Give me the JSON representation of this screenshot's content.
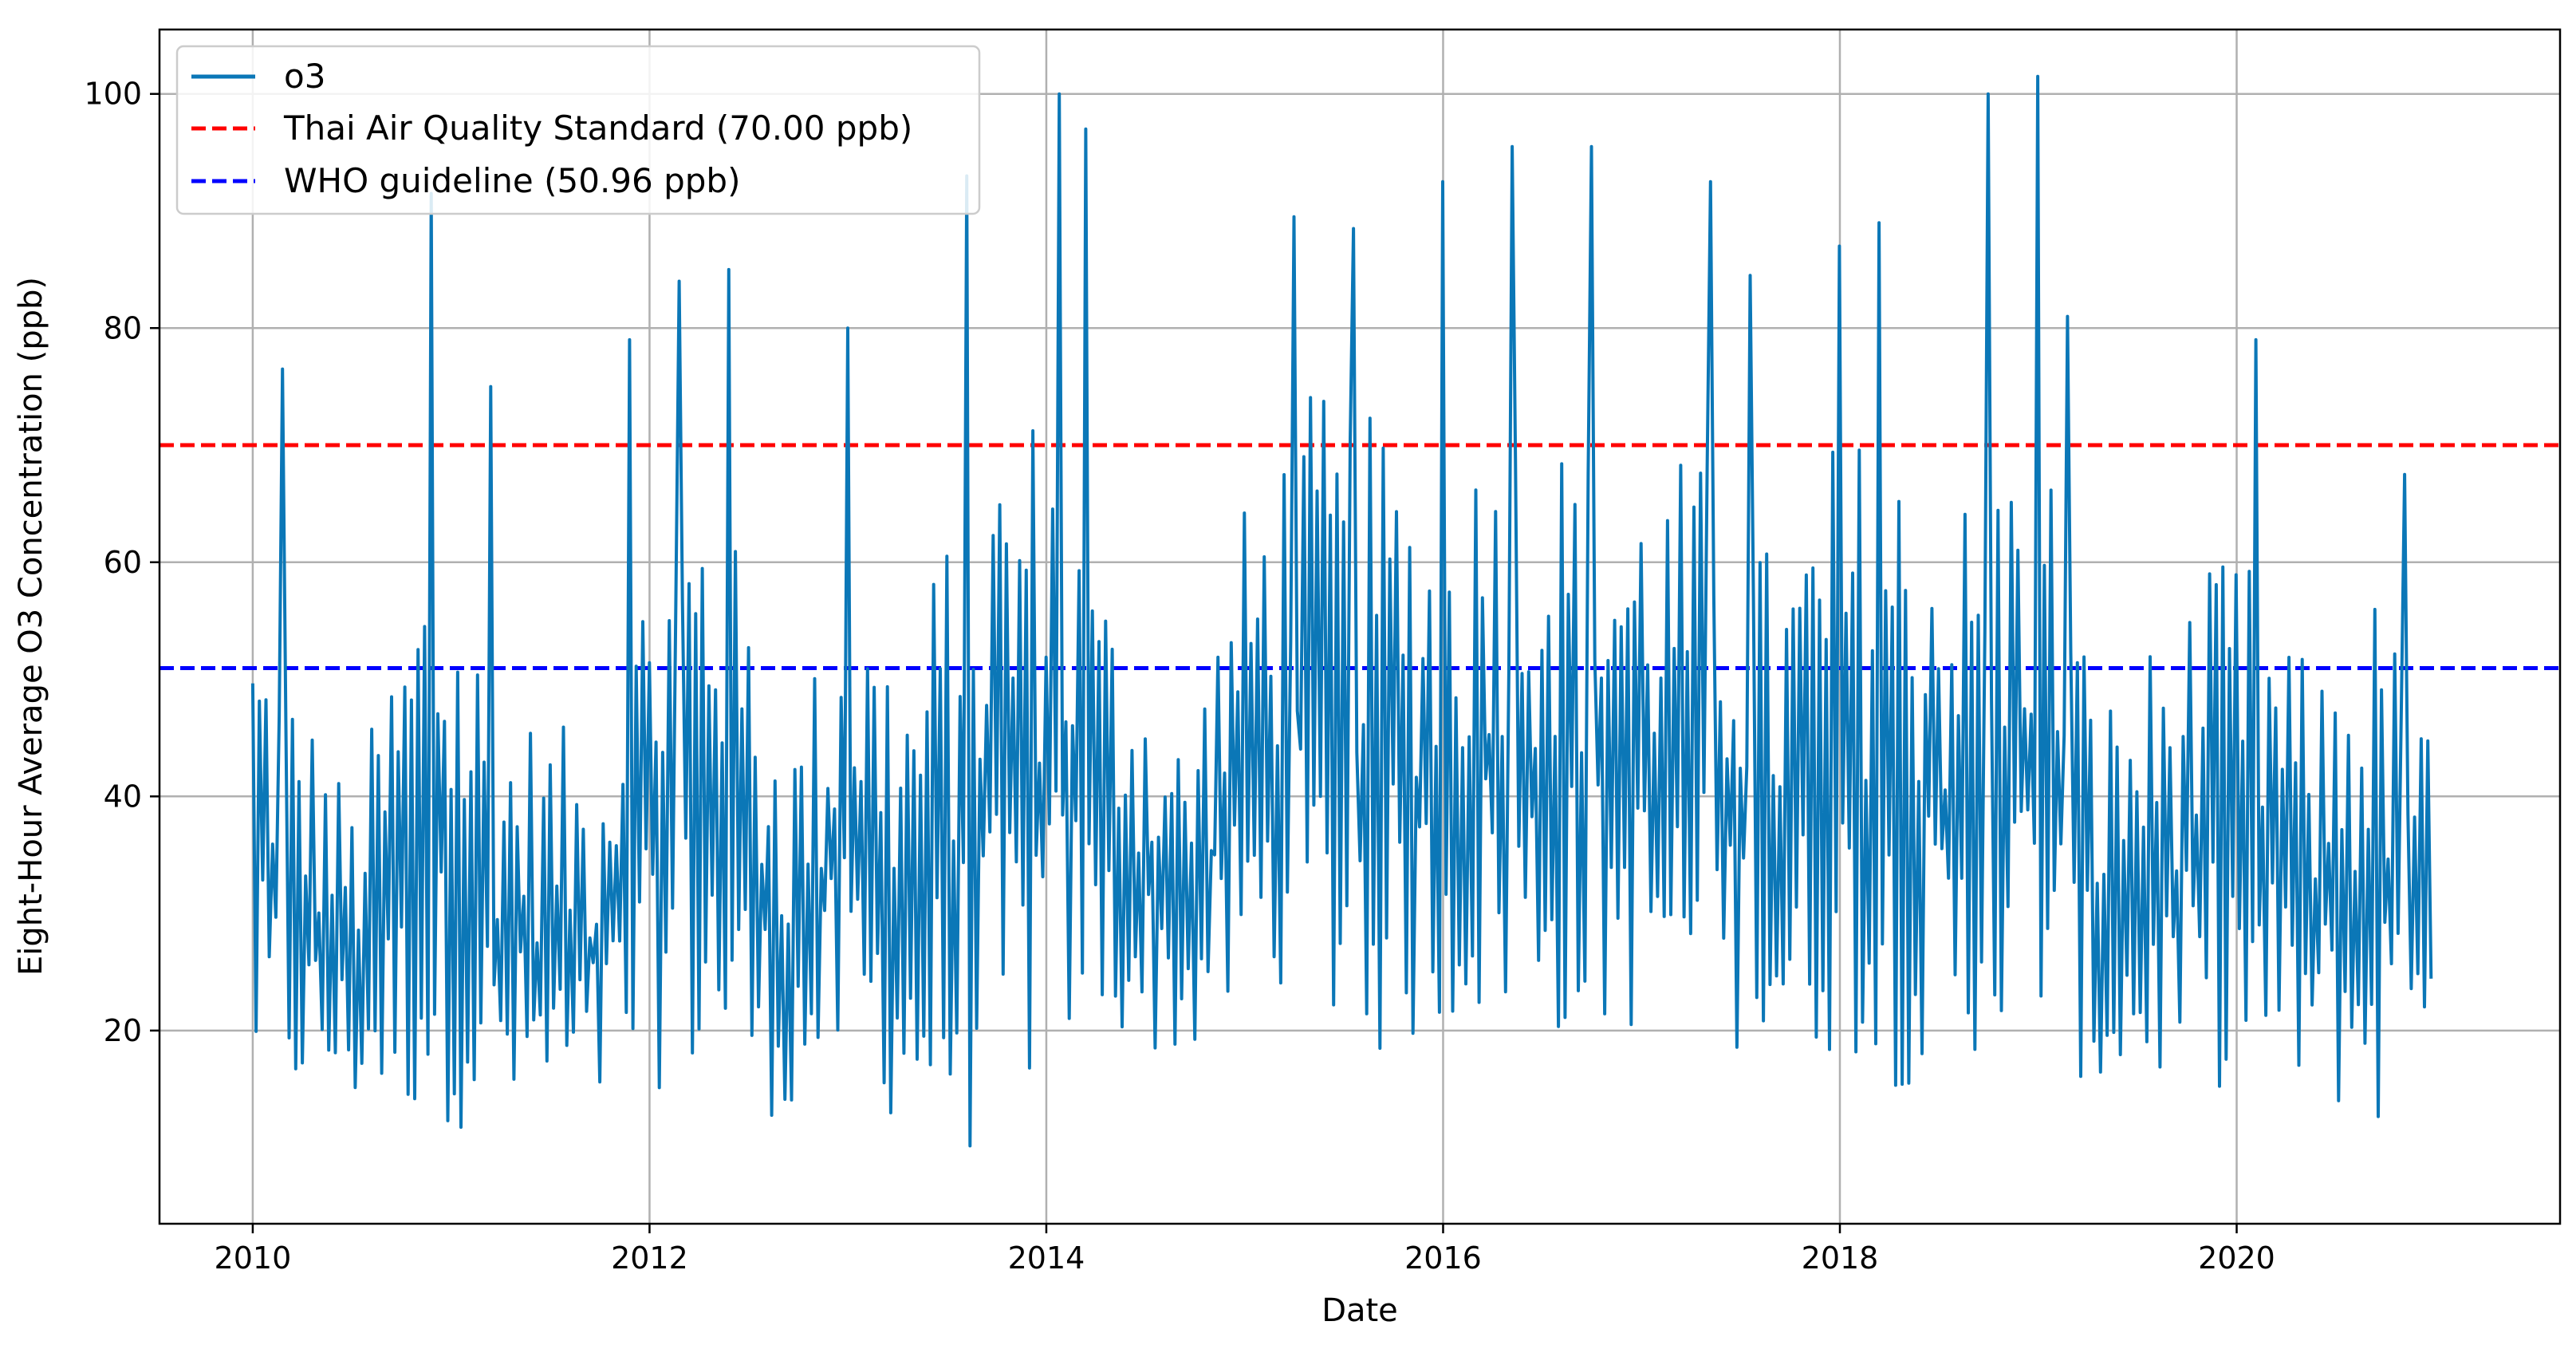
{
  "chart_data": {
    "type": "line",
    "title": "",
    "xlabel": "Date",
    "ylabel": "Eight-Hour Average O3 Concentration (ppb)",
    "xlim": [
      2009.53,
      2021.63
    ],
    "ylim": [
      3.5,
      105.5
    ],
    "grid": true,
    "legend_position": "top-left",
    "x_ticks": [
      2010,
      2012,
      2014,
      2016,
      2018,
      2020
    ],
    "x_tick_labels": [
      "2010",
      "2012",
      "2014",
      "2016",
      "2018",
      "2020"
    ],
    "y_ticks": [
      20,
      40,
      60,
      80,
      100
    ],
    "y_tick_labels": [
      "20",
      "40",
      "60",
      "80",
      "100"
    ],
    "series": [
      {
        "name": "o3",
        "label": "o3",
        "color": "#0b77b7",
        "style": "solid",
        "x_range": [
          2010.0,
          2020.98
        ],
        "points_per_year": 60,
        "envelope_x": [
          2010.0,
          2010.5,
          2010.9,
          2011.3,
          2011.7,
          2012.0,
          2012.3,
          2012.7,
          2013.0,
          2013.3,
          2013.6,
          2014.0,
          2014.2,
          2014.7,
          2015.0,
          2015.3,
          2015.7,
          2016.0,
          2016.3,
          2016.7,
          2017.0,
          2017.3,
          2017.7,
          2018.0,
          2018.3,
          2018.7,
          2019.0,
          2019.3,
          2019.7,
          2020.0,
          2020.4,
          2020.7,
          2020.98
        ],
        "low_env": [
          14,
          13,
          12,
          11,
          11,
          15,
          15,
          12,
          16,
          11,
          9,
          16,
          20,
          17,
          21,
          20,
          17,
          20,
          20,
          19,
          20,
          18,
          16,
          18,
          15,
          14,
          20,
          14,
          15,
          15,
          14,
          11,
          22
        ],
        "high_env": [
          58,
          40,
          65,
          48,
          45,
          62,
          70,
          45,
          60,
          52,
          70,
          75,
          62,
          45,
          65,
          75,
          72,
          65,
          75,
          70,
          68,
          70,
          60,
          72,
          70,
          66,
          75,
          48,
          56,
          62,
          50,
          58,
          45
        ],
        "peaks_x": [
          2010.15,
          2010.9,
          2011.2,
          2011.9,
          2012.15,
          2012.4,
          2013.0,
          2013.6,
          2014.07,
          2014.2,
          2015.25,
          2015.55,
          2016.0,
          2016.35,
          2016.75,
          2017.35,
          2017.55,
          2018.0,
          2018.2,
          2018.75,
          2019.0,
          2019.15,
          2020.1,
          2020.85
        ],
        "peaks": [
          76.5,
          91.5,
          75,
          79,
          84,
          85,
          80,
          93,
          100,
          97,
          89.5,
          88.5,
          92.5,
          95.5,
          95.5,
          92.5,
          84.5,
          87,
          89,
          100,
          101.5,
          81,
          79,
          67.5
        ]
      },
      {
        "name": "Thai Air Quality Standard (70.00 ppb)",
        "label": "Thai Air Quality Standard (70.00 ppb)",
        "color": "#ff0000",
        "style": "dashed",
        "y": 70.0
      },
      {
        "name": "WHO guideline (50.96 ppb)",
        "label": "WHO guideline (50.96 ppb)",
        "color": "#0000ff",
        "style": "dashed",
        "y": 50.96
      }
    ]
  }
}
